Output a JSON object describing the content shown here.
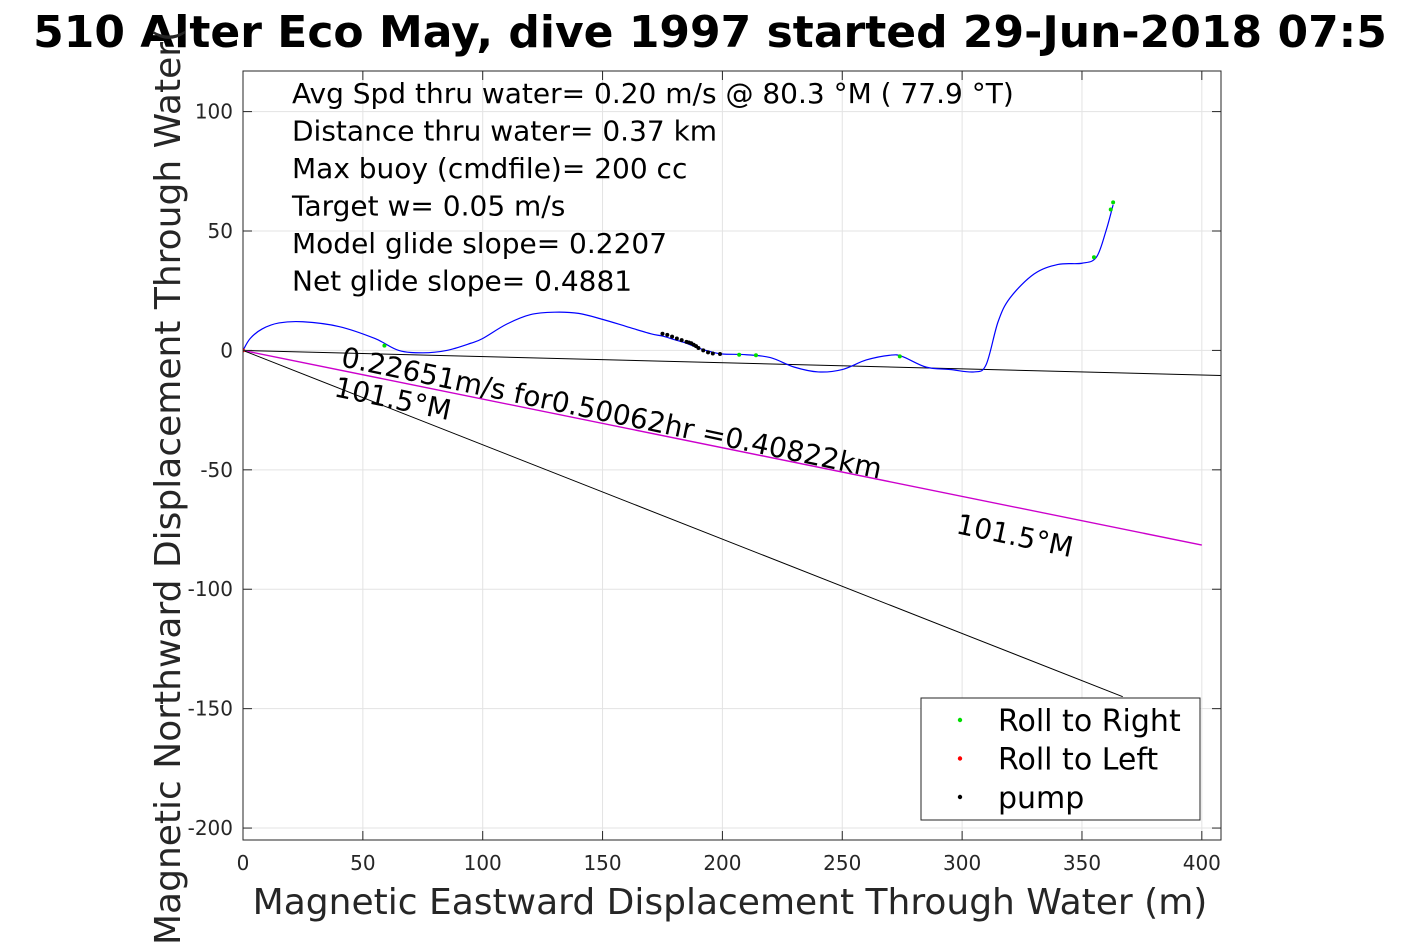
{
  "chart_data": {
    "type": "line",
    "title": "510 Alter Eco May, dive 1997 started 29-Jun-2018 07:5",
    "xlabel": "Magnetic Eastward Displacement Through Water (m)",
    "ylabel": "Magnetic Northward Displacement Through Water(",
    "xlim": [
      0,
      408
    ],
    "ylim": [
      -205,
      117
    ],
    "xticks": [
      0,
      50,
      100,
      150,
      200,
      250,
      300,
      350,
      400
    ],
    "yticks": [
      100,
      50,
      0,
      -50,
      -100,
      -150,
      -200
    ],
    "grid": true,
    "info_lines": [
      "Avg Spd thru water=  0.20 m/s @  80.3 °M ( 77.9 °T)",
      "Distance thru water=  0.37 km",
      "Max buoy (cmdfile)= 200 cc",
      "Target w= 0.05 m/s",
      "Model glide slope= 0.2207",
      "Net glide slope= 0.4881"
    ],
    "annotations": {
      "speed_text": "0.22651m/s for0.50062hr =0.40822km",
      "heading_near": "101.5°M",
      "heading_far": "101.5°M"
    },
    "track": {
      "color": "#0000ff",
      "x": [
        0,
        3,
        8,
        15,
        25,
        40,
        55,
        65,
        75,
        85,
        95,
        100,
        110,
        120,
        130,
        140,
        150,
        160,
        170,
        175,
        180,
        185,
        190,
        195,
        200,
        210,
        220,
        230,
        240,
        250,
        260,
        270,
        275,
        285,
        295,
        305,
        310,
        315,
        320,
        330,
        340,
        350,
        356,
        360,
        363
      ],
      "y": [
        0,
        5,
        9,
        11.5,
        12,
        10,
        5,
        0,
        -1,
        0,
        3,
        5,
        11,
        15,
        16,
        15.5,
        13,
        10,
        7,
        6,
        4.5,
        3,
        1,
        -0.5,
        -1.5,
        -1.8,
        -3,
        -7,
        -9,
        -8,
        -4,
        -2,
        -2.5,
        -7,
        -8,
        -9,
        -6,
        12,
        22,
        32,
        36,
        36.5,
        39,
        50,
        61
      ]
    },
    "lines": [
      {
        "name": "net",
        "color": "#000000",
        "x": [
          0,
          408
        ],
        "y": [
          0,
          -10.5
        ]
      },
      {
        "name": "model",
        "color": "#cc00cc",
        "x": [
          0,
          400
        ],
        "y": [
          0,
          -81.5
        ]
      },
      {
        "name": "steep",
        "color": "#000000",
        "x": [
          0,
          367
        ],
        "y": [
          0,
          -145
        ]
      }
    ],
    "markers": [
      {
        "series": "Roll to Right",
        "color": "#00dd00",
        "x": [
          59,
          207,
          214,
          274,
          355,
          362,
          363
        ],
        "y": [
          2,
          -1.8,
          -2,
          -2.5,
          39,
          59,
          62
        ]
      },
      {
        "series": "Roll to Left",
        "color": "#ff0000",
        "x": [
          0
        ],
        "y": [
          0
        ]
      },
      {
        "series": "pump",
        "color": "#000000",
        "x": [
          175,
          177,
          179,
          181,
          183,
          185,
          186,
          187,
          188,
          189,
          190,
          192,
          194,
          196,
          199
        ],
        "y": [
          7,
          6.5,
          5.8,
          5,
          4.3,
          3.6,
          3.3,
          3,
          2.4,
          1.8,
          1,
          0,
          -0.8,
          -1.3,
          -1.5
        ]
      }
    ],
    "legend": {
      "placement": "bottom-right",
      "entries": [
        {
          "label": "Roll to Right",
          "color": "#00dd00"
        },
        {
          "label": "Roll to Left",
          "color": "#ff0000"
        },
        {
          "label": "pump",
          "color": "#000000"
        }
      ]
    }
  }
}
